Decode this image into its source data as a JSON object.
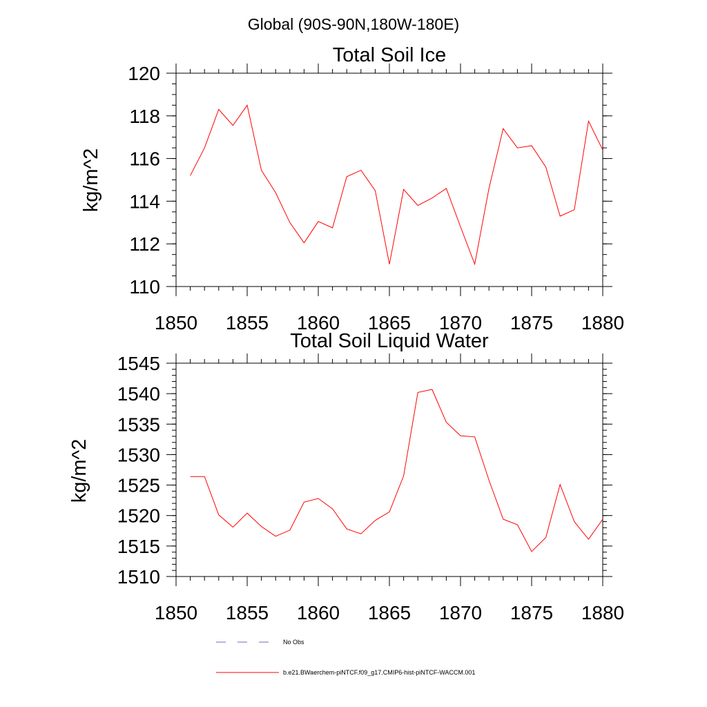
{
  "figure_title": "Global (90S-90N,180W-180E)",
  "chart_data": [
    {
      "type": "line",
      "title": "Total Soil Ice",
      "xlabel": "",
      "ylabel": "kg/m^2",
      "xlim": [
        1850,
        1880
      ],
      "ylim": [
        110,
        120
      ],
      "x_ticks": [
        "1850",
        "1855",
        "1860",
        "1865",
        "1870",
        "1875",
        "1880"
      ],
      "y_ticks": [
        "110",
        "112",
        "114",
        "116",
        "118",
        "120"
      ],
      "x_tick_values": [
        1850,
        1855,
        1860,
        1865,
        1870,
        1875,
        1880
      ],
      "y_tick_values": [
        110,
        112,
        114,
        116,
        118,
        120
      ],
      "y_minor_step": 0.5,
      "x_minor_step": 1,
      "grid": false,
      "series": [
        {
          "name": "b.e21.BWaerchem-piNTCF.f09_g17.CMIP6-hist-piNTCF-WACCM.001",
          "color": "#ff0000",
          "x": [
            1851,
            1852,
            1853,
            1854,
            1855,
            1856,
            1857,
            1858,
            1859,
            1860,
            1861,
            1862,
            1863,
            1864,
            1865,
            1866,
            1867,
            1868,
            1869,
            1870,
            1871,
            1872,
            1873,
            1874,
            1875,
            1876,
            1877,
            1878,
            1879,
            1880
          ],
          "values": [
            115.2,
            116.5,
            118.3,
            117.55,
            118.5,
            115.45,
            114.4,
            113.0,
            112.05,
            113.05,
            112.75,
            115.15,
            115.45,
            114.5,
            111.05,
            114.55,
            113.8,
            114.15,
            114.6,
            112.8,
            111.05,
            114.6,
            117.4,
            116.5,
            116.6,
            115.6,
            113.3,
            113.6,
            117.75,
            116.4
          ]
        }
      ]
    },
    {
      "type": "line",
      "title": "Total Soil Liquid Water",
      "xlabel": "",
      "ylabel": "kg/m^2",
      "xlim": [
        1850,
        1880
      ],
      "ylim": [
        1510,
        1545
      ],
      "x_ticks": [
        "1850",
        "1855",
        "1860",
        "1865",
        "1870",
        "1875",
        "1880"
      ],
      "y_ticks": [
        "1510",
        "1515",
        "1520",
        "1525",
        "1530",
        "1535",
        "1540",
        "1545"
      ],
      "x_tick_values": [
        1850,
        1855,
        1860,
        1865,
        1870,
        1875,
        1880
      ],
      "y_tick_values": [
        1510,
        1515,
        1520,
        1525,
        1530,
        1535,
        1540,
        1545
      ],
      "y_minor_step": 1,
      "x_minor_step": 1,
      "grid": false,
      "series": [
        {
          "name": "b.e21.BWaerchem-piNTCF.f09_g17.CMIP6-hist-piNTCF-WACCM.001",
          "color": "#ff0000",
          "x": [
            1851,
            1852,
            1853,
            1854,
            1855,
            1856,
            1857,
            1858,
            1859,
            1860,
            1861,
            1862,
            1863,
            1864,
            1865,
            1866,
            1867,
            1868,
            1869,
            1870,
            1871,
            1872,
            1873,
            1874,
            1875,
            1876,
            1877,
            1878,
            1879,
            1880
          ],
          "values": [
            1526.4,
            1526.4,
            1520.1,
            1518.1,
            1520.4,
            1518.2,
            1516.6,
            1517.6,
            1522.2,
            1522.8,
            1521.1,
            1517.8,
            1517.0,
            1519.2,
            1520.6,
            1526.5,
            1540.2,
            1540.7,
            1535.3,
            1533.1,
            1532.9,
            1525.8,
            1519.4,
            1518.5,
            1514.1,
            1516.4,
            1525.1,
            1519.0,
            1516.1,
            1519.4
          ]
        }
      ]
    }
  ],
  "legend": {
    "placement": "bottom-center",
    "entries": [
      {
        "label": "No Obs",
        "color": "#6b6bb0",
        "style": "dashed"
      },
      {
        "label": "b.e21.BWaerchem-piNTCF.f09_g17.CMIP6-hist-piNTCF-WACCM.001",
        "color": "#ff0000",
        "style": "solid"
      }
    ]
  }
}
